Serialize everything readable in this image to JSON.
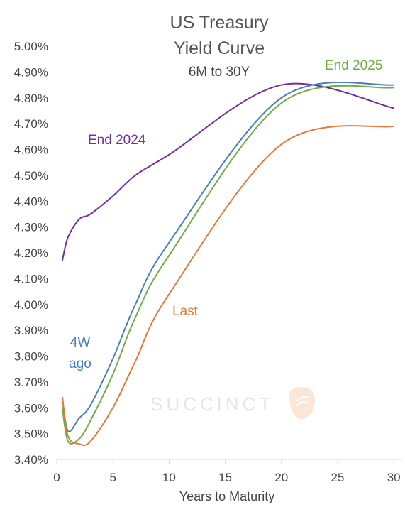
{
  "chart_data": {
    "type": "line",
    "title_lines": [
      "US Treasury",
      "Yield Curve"
    ],
    "subtitle": "6M to 30Y",
    "xlabel": "Years to Maturity",
    "ylabel": "",
    "xlim": [
      0,
      31
    ],
    "ylim": [
      3.4,
      5.0
    ],
    "x_ticks": [
      0,
      5,
      10,
      15,
      20,
      25,
      30
    ],
    "y_ticks": [
      "3.40%",
      "3.50%",
      "3.60%",
      "3.70%",
      "3.80%",
      "3.90%",
      "4.00%",
      "4.10%",
      "4.20%",
      "4.30%",
      "4.40%",
      "4.50%",
      "4.60%",
      "4.70%",
      "4.80%",
      "4.90%",
      "5.00%"
    ],
    "grid": false,
    "watermark": "SUCCINCT",
    "series": [
      {
        "name": "End 2024",
        "color": "#7030a0",
        "x": [
          0.5,
          1,
          2,
          3,
          5,
          7,
          10,
          20,
          30
        ],
        "values": [
          4.17,
          4.26,
          4.33,
          4.35,
          4.42,
          4.5,
          4.58,
          4.85,
          4.76
        ]
      },
      {
        "name": "4W ago",
        "color": "#4a7ebb",
        "x": [
          0.5,
          1,
          2,
          3,
          5,
          7,
          10,
          20,
          30
        ],
        "values": [
          3.64,
          3.51,
          3.56,
          3.61,
          3.79,
          4.0,
          4.24,
          4.8,
          4.85
        ]
      },
      {
        "name": "End 2025",
        "color": "#70ad47",
        "x": [
          0.5,
          1,
          2,
          3,
          5,
          7,
          10,
          20,
          30
        ],
        "values": [
          3.6,
          3.47,
          3.48,
          3.55,
          3.73,
          3.95,
          4.19,
          4.78,
          4.84
        ]
      },
      {
        "name": "Last",
        "color": "#e07b39",
        "x": [
          0.5,
          1,
          2,
          3,
          5,
          7,
          10,
          20,
          30
        ],
        "values": [
          3.64,
          3.49,
          3.46,
          3.47,
          3.6,
          3.78,
          4.04,
          4.62,
          4.69
        ]
      }
    ]
  }
}
